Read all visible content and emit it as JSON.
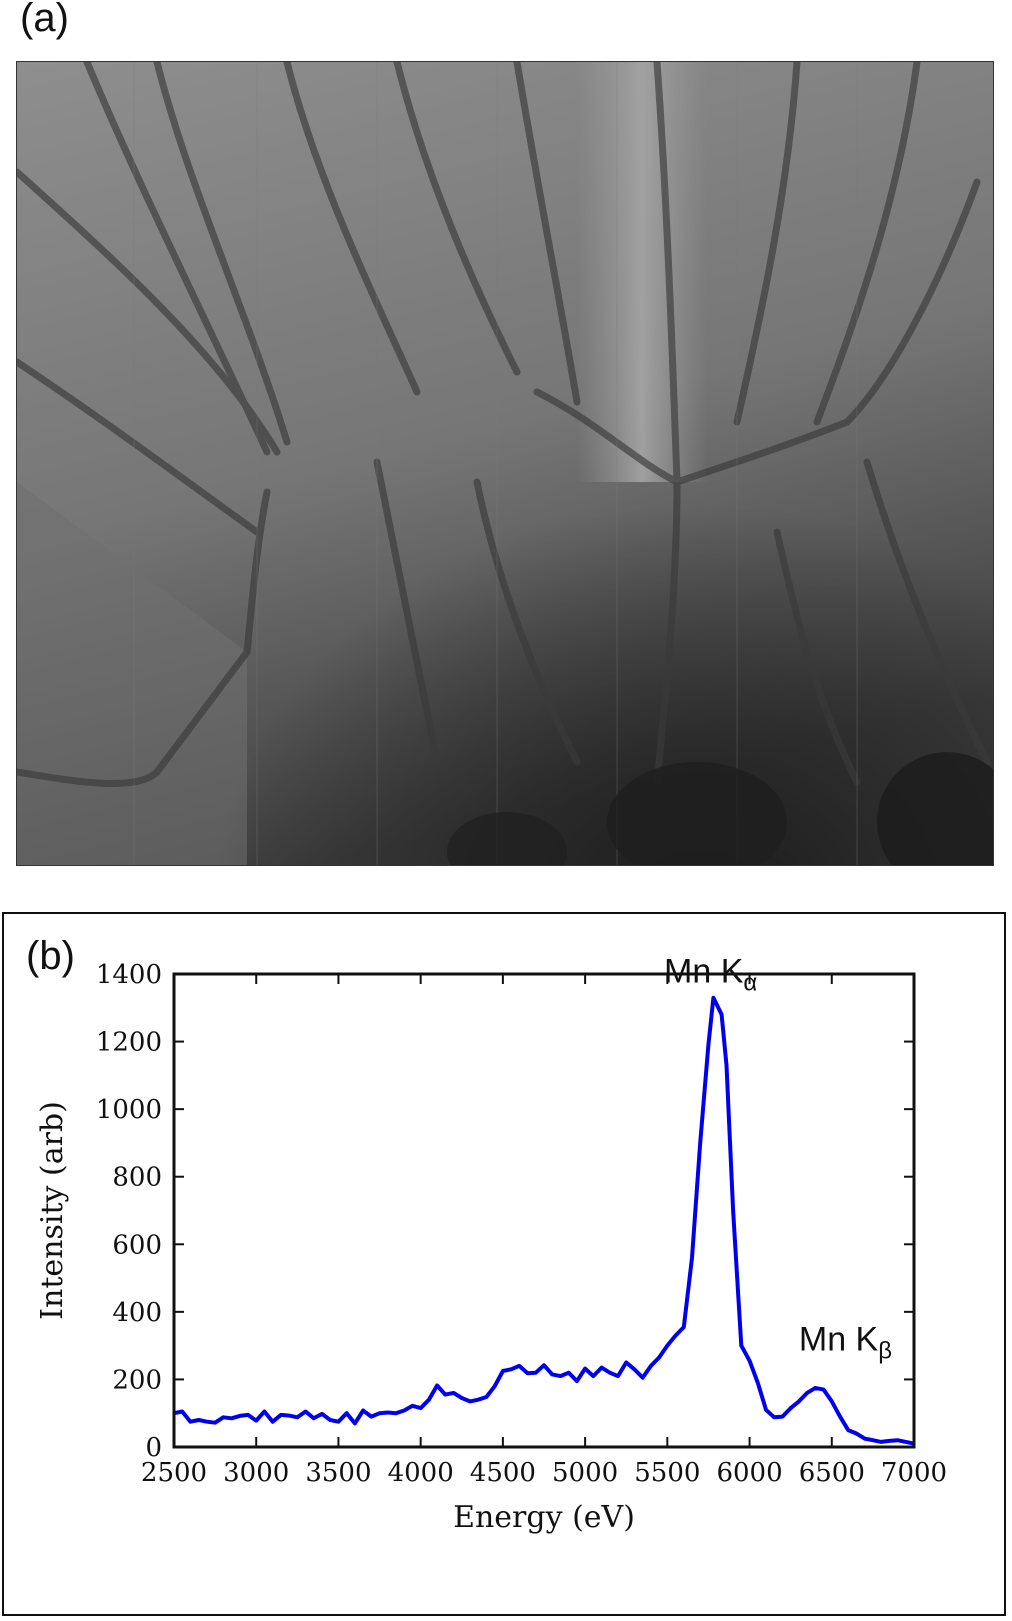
{
  "panels": {
    "a_label": "(a)",
    "b_label": "(b)"
  },
  "micrograph": {
    "colors": {
      "background_light": "#8e8e8e",
      "background_mid": "#6f6f6f",
      "background_dark": "#2a2a2a",
      "streak": "#3a3a3a"
    }
  },
  "chart_data": {
    "type": "line",
    "xlabel": "Energy (eV)",
    "ylabel": "Intensity (arb)",
    "xlim": [
      2500,
      7000
    ],
    "ylim": [
      0,
      1400
    ],
    "xticks": [
      2500,
      3000,
      3500,
      4000,
      4500,
      5000,
      5500,
      6000,
      6500,
      7000
    ],
    "yticks": [
      0,
      200,
      400,
      600,
      800,
      1000,
      1200,
      1400
    ],
    "grid": false,
    "legend": "none",
    "series": [
      {
        "color": "#0000ee",
        "x": [
          2500,
          2550,
          2600,
          2650,
          2700,
          2750,
          2800,
          2850,
          2900,
          2950,
          3000,
          3050,
          3100,
          3150,
          3200,
          3250,
          3300,
          3350,
          3400,
          3450,
          3500,
          3550,
          3600,
          3650,
          3700,
          3750,
          3800,
          3850,
          3900,
          3950,
          4000,
          4050,
          4100,
          4150,
          4200,
          4250,
          4300,
          4350,
          4400,
          4450,
          4500,
          4550,
          4600,
          4650,
          4700,
          4750,
          4800,
          4850,
          4900,
          4950,
          5000,
          5050,
          5100,
          5150,
          5200,
          5250,
          5300,
          5350,
          5400,
          5450,
          5500,
          5550,
          5600,
          5650,
          5700,
          5750,
          5780,
          5800,
          5830,
          5860,
          5900,
          5950,
          6000,
          6050,
          6100,
          6150,
          6200,
          6250,
          6300,
          6350,
          6400,
          6450,
          6500,
          6550,
          6600,
          6650,
          6700,
          6750,
          6800,
          6850,
          6900,
          6950,
          7000
        ],
        "y": [
          100,
          105,
          75,
          80,
          75,
          72,
          88,
          85,
          92,
          95,
          78,
          105,
          75,
          95,
          93,
          88,
          105,
          85,
          98,
          80,
          75,
          100,
          70,
          108,
          90,
          100,
          102,
          100,
          108,
          122,
          115,
          140,
          182,
          155,
          160,
          145,
          135,
          140,
          148,
          180,
          225,
          230,
          240,
          218,
          220,
          242,
          215,
          210,
          220,
          195,
          232,
          210,
          235,
          220,
          210,
          250,
          230,
          205,
          240,
          265,
          300,
          330,
          355,
          560,
          900,
          1190,
          1330,
          1310,
          1280,
          1130,
          700,
          300,
          255,
          190,
          110,
          88,
          90,
          115,
          135,
          160,
          175,
          170,
          135,
          90,
          50,
          40,
          25,
          20,
          15,
          18,
          20,
          15,
          10
        ]
      }
    ],
    "annotations": [
      {
        "text": "Mn K",
        "sub": "α",
        "x": 5480,
        "y": 1340
      },
      {
        "text": "Mn K",
        "sub": "β",
        "x": 6300,
        "y": 250
      }
    ]
  }
}
